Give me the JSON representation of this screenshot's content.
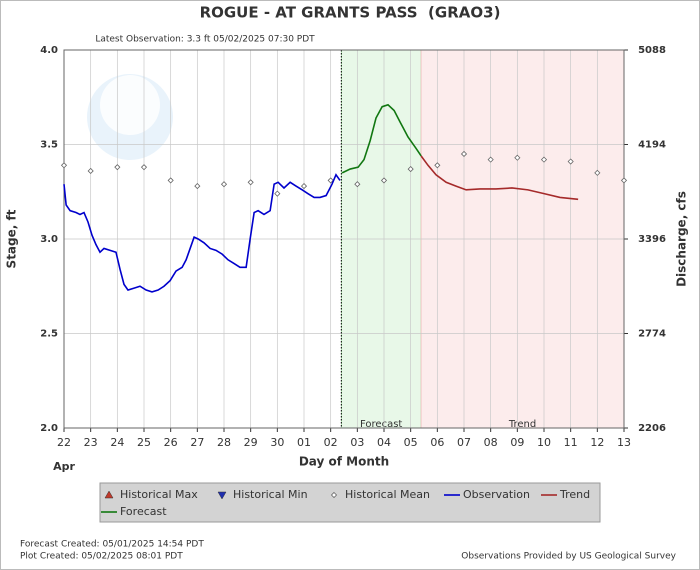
{
  "chart_data": {
    "type": "line",
    "title": "ROGUE - AT GRANTS PASS  (GRAO3)",
    "subtitle": "Latest Observation: 3.3 ft 05/02/2025 07:30 PDT",
    "y_label": "Stage, ft",
    "y2_label": "Discharge, cfs",
    "x_label": "Day of Month",
    "month_label": "Apr",
    "xlim": [
      0,
      21
    ],
    "xticks": [
      {
        "value": 0,
        "label": "22"
      },
      {
        "value": 1,
        "label": "23"
      },
      {
        "value": 2,
        "label": "24"
      },
      {
        "value": 3,
        "label": "25"
      },
      {
        "value": 4,
        "label": "26"
      },
      {
        "value": 5,
        "label": "27"
      },
      {
        "value": 6,
        "label": "28"
      },
      {
        "value": 7,
        "label": "29"
      },
      {
        "value": 8,
        "label": "30"
      },
      {
        "value": 9,
        "label": "01"
      },
      {
        "value": 10,
        "label": "02"
      },
      {
        "value": 11,
        "label": "03"
      },
      {
        "value": 12,
        "label": "04"
      },
      {
        "value": 13,
        "label": "05"
      },
      {
        "value": 14,
        "label": "06"
      },
      {
        "value": 15,
        "label": "07"
      },
      {
        "value": 16,
        "label": "08"
      },
      {
        "value": 17,
        "label": "09"
      },
      {
        "value": 18,
        "label": "10"
      },
      {
        "value": 19,
        "label": "11"
      },
      {
        "value": 20,
        "label": "12"
      },
      {
        "value": 21,
        "label": "13"
      }
    ],
    "ylim": [
      2,
      4
    ],
    "yticks": [
      {
        "value": 2,
        "label": "2.0"
      },
      {
        "value": 2.5,
        "label": "2.5"
      },
      {
        "value": 3,
        "label": "3.0"
      },
      {
        "value": 3.5,
        "label": "3.5"
      },
      {
        "value": 4,
        "label": "4.0"
      }
    ],
    "y2lim": [
      2206,
      5088
    ],
    "y2ticks": [
      2206,
      2774,
      3396,
      4194,
      5088
    ],
    "grid": true,
    "observation_time": 10.4,
    "regions": [
      {
        "name": "Forecast",
        "xlim": [
          10.4,
          13.39
        ],
        "color": "#e8f8e8"
      },
      {
        "name": "Trend",
        "xlim": [
          13.39,
          21
        ],
        "color": "#fcecec"
      }
    ],
    "series": [
      {
        "name": "Historical Max",
        "color": "#c0392b",
        "marker": "triangle-up",
        "x": [],
        "values": []
      },
      {
        "name": "Historical Min",
        "color": "#1f2fb0",
        "marker": "triangle-down",
        "x": [],
        "values": []
      },
      {
        "name": "Historical Mean",
        "color": "#666666",
        "marker": "diamond",
        "x": [
          0,
          1,
          2,
          3,
          4,
          5,
          6,
          7,
          8,
          9,
          10,
          11,
          12,
          13,
          14,
          15,
          16,
          17,
          18,
          19,
          20,
          21
        ],
        "values": [
          3.39,
          3.36,
          3.38,
          3.38,
          3.31,
          3.28,
          3.29,
          3.3,
          3.24,
          3.28,
          3.31,
          3.29,
          3.31,
          3.37,
          3.39,
          3.45,
          3.42,
          3.43,
          3.42,
          3.41,
          3.35,
          3.31
        ]
      },
      {
        "name": "Observation",
        "color": "#0000cc",
        "marker": "line",
        "x": [
          0,
          0.08,
          0.23,
          0.45,
          0.6,
          0.75,
          0.9,
          1.05,
          1.2,
          1.35,
          1.5,
          1.73,
          1.95,
          2.1,
          2.25,
          2.4,
          2.63,
          2.85,
          3.08,
          3.3,
          3.53,
          3.75,
          3.98,
          4.2,
          4.43,
          4.58,
          4.73,
          4.88,
          5.03,
          5.25,
          5.48,
          5.7,
          5.93,
          6.15,
          6.38,
          6.6,
          6.83,
          6.98,
          7.13,
          7.28,
          7.5,
          7.73,
          7.88,
          8.03,
          8.25,
          8.48,
          8.7,
          8.93,
          9.15,
          9.38,
          9.6,
          9.83,
          10.05,
          10.2,
          10.35
        ],
        "values": [
          3.29,
          3.18,
          3.15,
          3.14,
          3.13,
          3.14,
          3.09,
          3.02,
          2.97,
          2.93,
          2.95,
          2.94,
          2.93,
          2.84,
          2.76,
          2.73,
          2.74,
          2.75,
          2.73,
          2.72,
          2.73,
          2.75,
          2.78,
          2.83,
          2.85,
          2.89,
          2.95,
          3.01,
          3.0,
          2.98,
          2.95,
          2.94,
          2.92,
          2.89,
          2.87,
          2.85,
          2.85,
          3.0,
          3.14,
          3.15,
          3.13,
          3.15,
          3.29,
          3.3,
          3.27,
          3.3,
          3.28,
          3.26,
          3.24,
          3.22,
          3.22,
          3.23,
          3.29,
          3.34,
          3.31
        ]
      },
      {
        "name": "Trend",
        "color": "#a52a2a",
        "marker": "line",
        "x": [
          13.39,
          13.65,
          13.95,
          14.33,
          14.7,
          15.08,
          15.6,
          16.2,
          16.8,
          17.4,
          18.0,
          18.6,
          19.28
        ],
        "values": [
          3.44,
          3.39,
          3.34,
          3.3,
          3.28,
          3.26,
          3.265,
          3.265,
          3.27,
          3.26,
          3.24,
          3.22,
          3.21
        ]
      },
      {
        "name": "Forecast",
        "color": "#117711",
        "marker": "line",
        "x": [
          10.43,
          10.73,
          11.03,
          11.25,
          11.48,
          11.7,
          11.93,
          12.15,
          12.38,
          12.6,
          12.9,
          13.2,
          13.39
        ],
        "values": [
          3.35,
          3.37,
          3.38,
          3.42,
          3.52,
          3.64,
          3.7,
          3.71,
          3.68,
          3.62,
          3.54,
          3.48,
          3.44
        ]
      }
    ],
    "footer_left": [
      "Forecast Created: 05/01/2025 14:54 PDT",
      "Plot Created: 05/02/2025 08:01 PDT"
    ],
    "footer_right": "Observations Provided by US Geological Survey"
  }
}
